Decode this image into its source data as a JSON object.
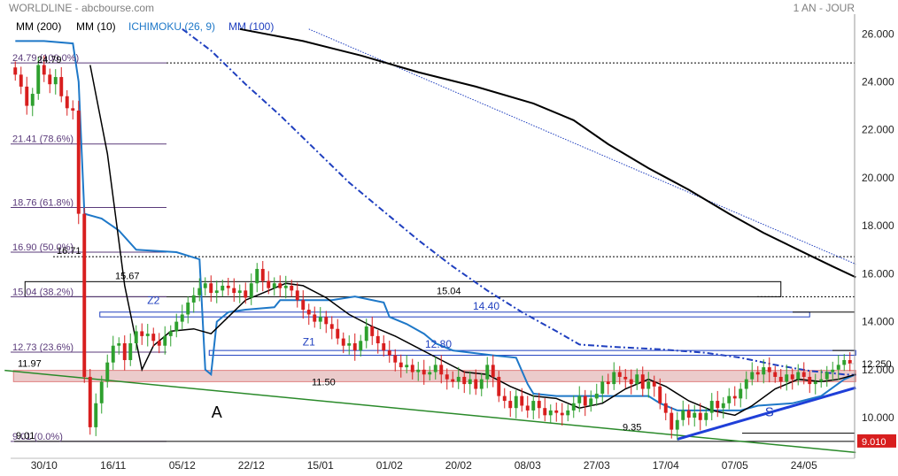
{
  "header": {
    "title": "WORLDLINE - abcbourse.com",
    "period": "1 AN - JOUR"
  },
  "legend": [
    {
      "label": "MM (200)",
      "color": "#000000"
    },
    {
      "label": "MM (10)",
      "color": "#000000"
    },
    {
      "label": "ICHIMOKU (26, 9)",
      "color": "#1e78c8"
    },
    {
      "label": "MM (100)",
      "color": "#1f3fbf"
    }
  ],
  "colors": {
    "up": "#2ea02e",
    "down": "#d81e1e",
    "ma200": "#000000",
    "ma10": "#000000",
    "ichimoku": "#1e78c8",
    "ma100": "#1f3fbf",
    "trend_green": "#2a8a2a",
    "trend_blue": "#1f3fd8",
    "fib_text": "#5a3a7a"
  },
  "chart_data": {
    "type": "candlestick",
    "y_axis": {
      "min": 8.6,
      "max": 26.6,
      "ticks": [
        "26.000",
        "24.000",
        "22.000",
        "20.000",
        "18.000",
        "16.000",
        "14.000",
        "12.000",
        "10.000"
      ],
      "tick_values": [
        26,
        24,
        22,
        20,
        18,
        16,
        14,
        12,
        10
      ],
      "side": "right"
    },
    "x_axis": {
      "labels": [
        "30/10",
        "16/11",
        "05/12",
        "22/12",
        "15/01",
        "01/02",
        "20/02",
        "08/03",
        "27/03",
        "17/04",
        "07/05",
        "24/05"
      ],
      "label_index": [
        5,
        17,
        29,
        41,
        53,
        65,
        77,
        89,
        101,
        113,
        125,
        137
      ],
      "count": 146
    },
    "last_price": {
      "label": "12.250",
      "value": 12.25
    },
    "low_price": {
      "label": "9.010",
      "value": 9.01
    },
    "fibonacci": [
      {
        "label": "24.79  (100.0%)",
        "value": 24.79
      },
      {
        "label": "21.41  (78.6%)",
        "value": 21.41
      },
      {
        "label": "18.76  (61.8%)",
        "value": 18.76
      },
      {
        "label": "16.90  (50.0%)",
        "value": 16.9
      },
      {
        "label": "15.04  (38.2%)",
        "value": 15.04
      },
      {
        "label": "12.73  (23.6%)",
        "value": 12.73
      },
      {
        "label": "9.01  (0.0%)",
        "value": 9.01
      }
    ],
    "levels": [
      {
        "label": "24.79",
        "value": 24.79
      },
      {
        "label": "16.71",
        "value": 16.71
      },
      {
        "label": "15.67",
        "value": 15.67
      },
      {
        "label": "15.04",
        "value": 15.04
      },
      {
        "label": "14.40",
        "value": 14.4
      },
      {
        "label": "12.80",
        "value": 12.8
      },
      {
        "label": "11.97",
        "value": 11.97
      },
      {
        "label": "11.50",
        "value": 11.5
      },
      {
        "label": "9.35",
        "value": 9.35
      },
      {
        "label": "9.01",
        "value": 9.01
      }
    ],
    "zones": [
      {
        "from": 15.04,
        "to": 15.67,
        "start_index": 2,
        "end_index": 133
      },
      {
        "from": 14.2,
        "to": 14.4,
        "start_index": 15,
        "end_index": 138
      },
      {
        "from": 12.6,
        "to": 12.8,
        "start_index": 34,
        "end_index": 146
      },
      {
        "from": 11.5,
        "to": 11.97,
        "start_index": 0,
        "end_index": 146
      }
    ],
    "annotations": [
      {
        "text": "Z2",
        "index": 24,
        "value": 14.75
      },
      {
        "text": "Z1",
        "index": 51,
        "value": 13.0
      },
      {
        "text": "A",
        "index": 35,
        "value": 10.0
      },
      {
        "text": "S",
        "index": 131,
        "value": 10.05
      }
    ],
    "trendlines": [
      {
        "name": "support-green",
        "from": [
          0,
          11.97
        ],
        "to": [
          146,
          8.55
        ]
      },
      {
        "name": "support-blue",
        "from": [
          115,
          9.1
        ],
        "to": [
          146,
          11.25
        ]
      },
      {
        "name": "resistance-dotted",
        "from": [
          51,
          26.2
        ],
        "to": [
          146,
          16.4
        ]
      }
    ],
    "ma200": [
      [
        39,
        26.2
      ],
      [
        50,
        25.7
      ],
      [
        60,
        25.1
      ],
      [
        70,
        24.4
      ],
      [
        80,
        23.8
      ],
      [
        90,
        23.1
      ],
      [
        97,
        22.4
      ],
      [
        103,
        21.4
      ],
      [
        110,
        20.4
      ],
      [
        117,
        19.5
      ],
      [
        124,
        18.5
      ],
      [
        130,
        17.7
      ],
      [
        136,
        17.0
      ],
      [
        142,
        16.3
      ],
      [
        146,
        15.85
      ]
    ],
    "ma100": [
      [
        29,
        26.2
      ],
      [
        34,
        25.3
      ],
      [
        40,
        23.9
      ],
      [
        46,
        22.6
      ],
      [
        52,
        21.2
      ],
      [
        58,
        19.8
      ],
      [
        64,
        18.6
      ],
      [
        70,
        17.4
      ],
      [
        76,
        16.3
      ],
      [
        82,
        15.3
      ],
      [
        88,
        14.4
      ],
      [
        94,
        13.6
      ],
      [
        98,
        13.05
      ],
      [
        104,
        12.95
      ],
      [
        112,
        12.85
      ],
      [
        120,
        12.7
      ],
      [
        126,
        12.5
      ],
      [
        132,
        12.2
      ],
      [
        138,
        11.95
      ],
      [
        144,
        11.8
      ],
      [
        146,
        11.78
      ]
    ],
    "ichimoku": [
      [
        0,
        25.7
      ],
      [
        5,
        25.7
      ],
      [
        10,
        25.6
      ],
      [
        11,
        24.0
      ],
      [
        12,
        18.5
      ],
      [
        15,
        18.3
      ],
      [
        18,
        17.8
      ],
      [
        21,
        17.0
      ],
      [
        28,
        16.9
      ],
      [
        32,
        16.6
      ],
      [
        33,
        12.0
      ],
      [
        34,
        11.8
      ],
      [
        35,
        14.0
      ],
      [
        37,
        14.4
      ],
      [
        40,
        14.5
      ],
      [
        45,
        14.6
      ],
      [
        46,
        14.9
      ],
      [
        55,
        14.9
      ],
      [
        59,
        15.05
      ],
      [
        64,
        14.8
      ],
      [
        65,
        14.2
      ],
      [
        68,
        13.9
      ],
      [
        71,
        13.5
      ],
      [
        73,
        13.1
      ],
      [
        76,
        12.8
      ],
      [
        83,
        12.6
      ],
      [
        87,
        12.5
      ],
      [
        89,
        11.4
      ],
      [
        90,
        11.0
      ],
      [
        94,
        10.9
      ],
      [
        110,
        10.9
      ],
      [
        112,
        10.6
      ],
      [
        115,
        10.3
      ],
      [
        126,
        10.3
      ],
      [
        129,
        10.5
      ],
      [
        135,
        10.6
      ],
      [
        140,
        10.9
      ],
      [
        144,
        11.6
      ],
      [
        146,
        11.8
      ]
    ],
    "ma10": [
      [
        13,
        24.7
      ],
      [
        16,
        21.0
      ],
      [
        19,
        15.5
      ],
      [
        22,
        12.0
      ],
      [
        24,
        13.0
      ],
      [
        27,
        13.6
      ],
      [
        31,
        13.7
      ],
      [
        34,
        13.5
      ],
      [
        37,
        14.2
      ],
      [
        40,
        14.9
      ],
      [
        44,
        15.3
      ],
      [
        47,
        15.6
      ],
      [
        50,
        15.5
      ],
      [
        54,
        15.0
      ],
      [
        58,
        14.3
      ],
      [
        62,
        13.8
      ],
      [
        66,
        13.4
      ],
      [
        70,
        12.9
      ],
      [
        74,
        12.4
      ],
      [
        78,
        11.9
      ],
      [
        82,
        11.8
      ],
      [
        86,
        11.3
      ],
      [
        90,
        10.9
      ],
      [
        94,
        10.8
      ],
      [
        98,
        10.4
      ],
      [
        102,
        10.6
      ],
      [
        106,
        11.2
      ],
      [
        110,
        11.6
      ],
      [
        113,
        11.3
      ],
      [
        117,
        10.7
      ],
      [
        121,
        10.3
      ],
      [
        125,
        10.1
      ],
      [
        128,
        10.5
      ],
      [
        132,
        11.2
      ],
      [
        136,
        11.6
      ],
      [
        140,
        11.5
      ],
      [
        143,
        11.6
      ],
      [
        146,
        11.8
      ]
    ],
    "closes": [
      24.3,
      23.8,
      23.0,
      23.5,
      24.7,
      24.3,
      23.9,
      24.2,
      23.4,
      22.9,
      22.8,
      18.5,
      11.7,
      9.6,
      10.6,
      11.5,
      12.3,
      13.0,
      13.1,
      12.4,
      13.1,
      13.6,
      13.4,
      13.5,
      13.2,
      13.0,
      13.4,
      13.6,
      14.0,
      14.3,
      14.8,
      15.1,
      15.4,
      15.6,
      15.2,
      15.3,
      15.5,
      15.4,
      15.2,
      15.3,
      15.0,
      15.6,
      16.2,
      15.7,
      15.4,
      15.6,
      15.4,
      15.5,
      15.3,
      14.9,
      14.5,
      14.3,
      14.0,
      14.2,
      13.9,
      13.7,
      13.3,
      13.0,
      13.1,
      12.8,
      13.2,
      13.8,
      13.4,
      13.1,
      12.8,
      12.6,
      12.3,
      12.1,
      12.2,
      11.9,
      12.0,
      11.8,
      11.9,
      12.2,
      11.8,
      11.6,
      11.5,
      11.7,
      11.4,
      11.6,
      11.2,
      11.6,
      12.2,
      11.7,
      10.9,
      10.7,
      10.4,
      10.9,
      10.5,
      10.3,
      10.7,
      10.4,
      10.1,
      10.3,
      10.2,
      10.1,
      10.3,
      10.6,
      10.9,
      10.5,
      10.8,
      11.0,
      11.5,
      11.4,
      11.9,
      11.7,
      11.6,
      11.4,
      11.8,
      11.2,
      11.5,
      11.3,
      10.6,
      10.2,
      9.5,
      9.9,
      10.3,
      10.0,
      10.2,
      9.9,
      10.2,
      10.7,
      10.4,
      10.6,
      10.9,
      10.8,
      11.2,
      11.6,
      11.9,
      11.8,
      12.1,
      11.9,
      11.7,
      11.5,
      11.8,
      11.6,
      11.9,
      11.7,
      11.4,
      11.5,
      11.6,
      11.9,
      12.0,
      12.2,
      12.4,
      12.25
    ]
  }
}
